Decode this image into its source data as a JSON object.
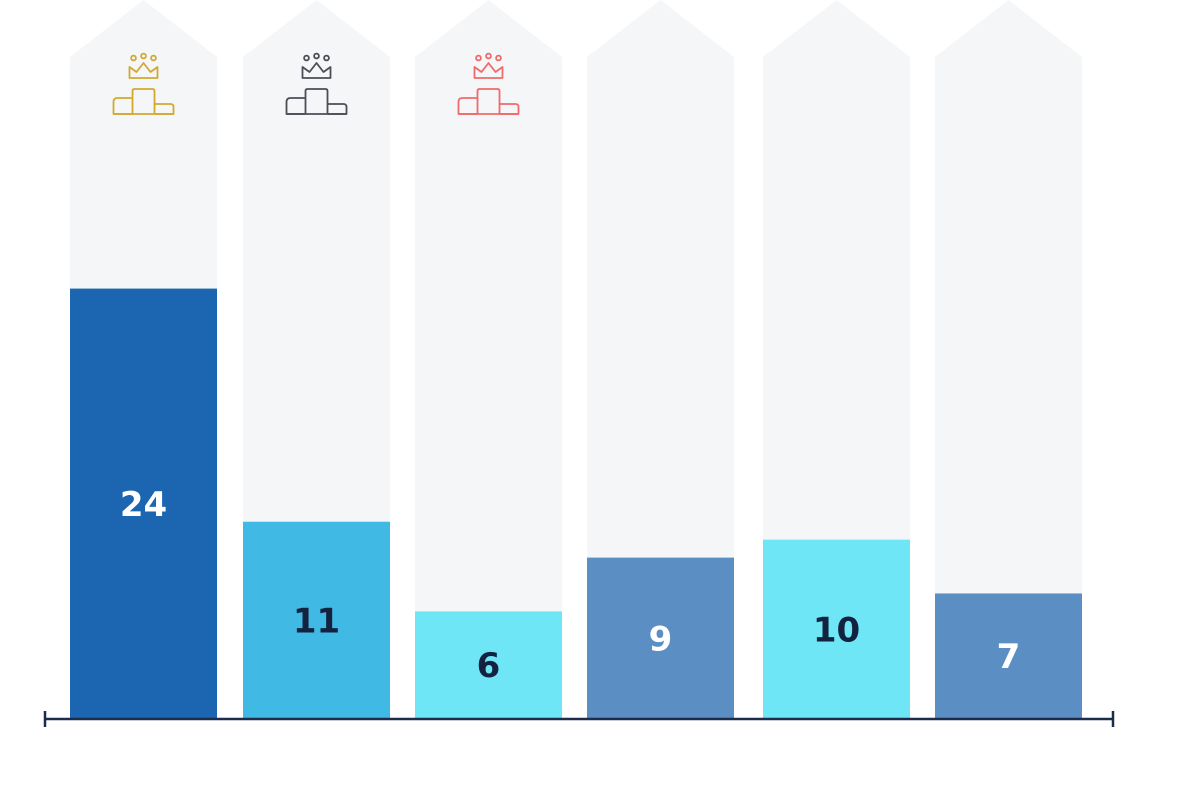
{
  "chart_data": {
    "type": "bar",
    "categories": [
      "",
      "",
      "",
      "",
      "",
      ""
    ],
    "values": [
      24,
      11,
      6,
      9,
      10,
      7
    ],
    "labels": [
      "24",
      "11",
      "6",
      "9",
      "10",
      "7"
    ],
    "ylim": [
      0,
      30
    ],
    "grid": false,
    "legend": "none",
    "bar_colors": [
      "#1b65b1",
      "#41b9e5",
      "#6ee6f5",
      "#5b8fc3",
      "#6ee6f5",
      "#5b8fc3"
    ],
    "label_colors": [
      "#ffffff",
      "#13233f",
      "#13233f",
      "#ffffff",
      "#13233f",
      "#ffffff"
    ],
    "background_column_color": "#f4f6f8",
    "axis_color": "#1b2c4c",
    "podium_icons": [
      {
        "name": "podium-crown-gold-icon",
        "color": "#d4a82f"
      },
      {
        "name": "podium-crown-silver-icon",
        "color": "#4b4e55"
      },
      {
        "name": "podium-crown-bronze-icon",
        "color": "#ef6a6a"
      },
      null,
      null,
      null
    ]
  }
}
